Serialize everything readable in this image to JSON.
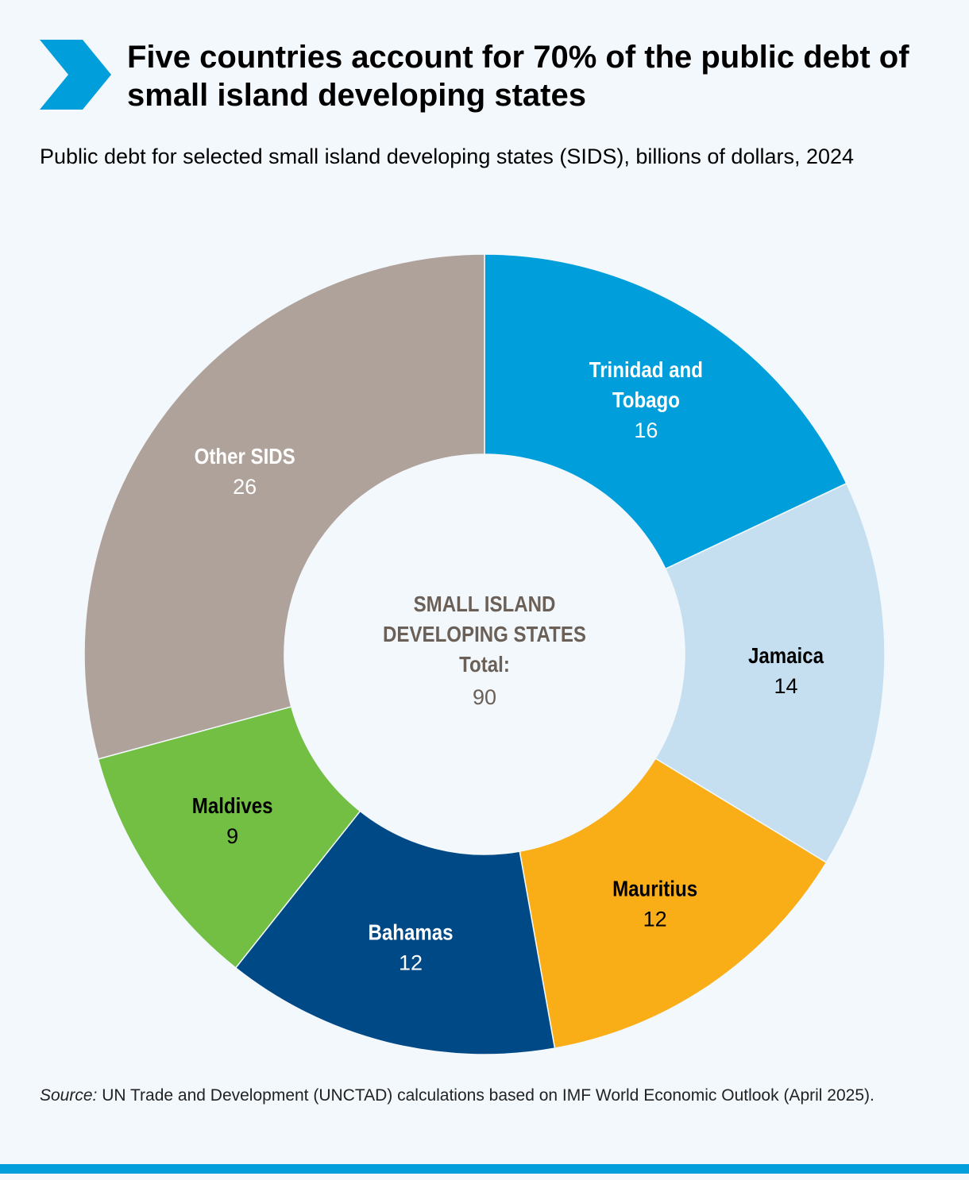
{
  "header": {
    "title": "Five countries account for 70% of the public debt of small island developing states",
    "subtitle": "Public debt for selected small island developing states (SIDS), billions of dollars, 2024"
  },
  "colors": {
    "accent": "#009edb",
    "background": "#f3f8fc",
    "center_text": "#6b6058"
  },
  "chart_data": {
    "type": "pie",
    "variant": "donut",
    "center": {
      "label_line1": "SMALL ISLAND",
      "label_line2": "DEVELOPING STATES",
      "label_line3": "Total:",
      "total": "90"
    },
    "slices": [
      {
        "label": "Trinidad and Tobago",
        "label_lines": [
          "Trinidad and",
          "Tobago"
        ],
        "value": 16,
        "color": "#009edb",
        "text_color": "#ffffff",
        "value_color": "#ffffff"
      },
      {
        "label": "Jamaica",
        "label_lines": [
          "Jamaica"
        ],
        "value": 14,
        "color": "#c5dff0",
        "text_color": "#000000",
        "value_color": "#000000"
      },
      {
        "label": "Mauritius",
        "label_lines": [
          "Mauritius"
        ],
        "value": 12,
        "color": "#f9ae17",
        "text_color": "#000000",
        "value_color": "#000000"
      },
      {
        "label": "Bahamas",
        "label_lines": [
          "Bahamas"
        ],
        "value": 12,
        "color": "#004987",
        "text_color": "#ffffff",
        "value_color": "#ffffff"
      },
      {
        "label": "Maldives",
        "label_lines": [
          "Maldives"
        ],
        "value": 9,
        "color": "#72bf44",
        "text_color": "#000000",
        "value_color": "#000000"
      },
      {
        "label": "Other SIDS",
        "label_lines": [
          "Other SIDS"
        ],
        "value": 26,
        "color": "#aea29a",
        "text_color": "#ffffff",
        "value_color": "#ffffff"
      }
    ]
  },
  "footer": {
    "source_prefix": "Source:",
    "source_text": " UN Trade and Development (UNCTAD) calculations based on IMF World Economic Outlook (April 2025)."
  }
}
